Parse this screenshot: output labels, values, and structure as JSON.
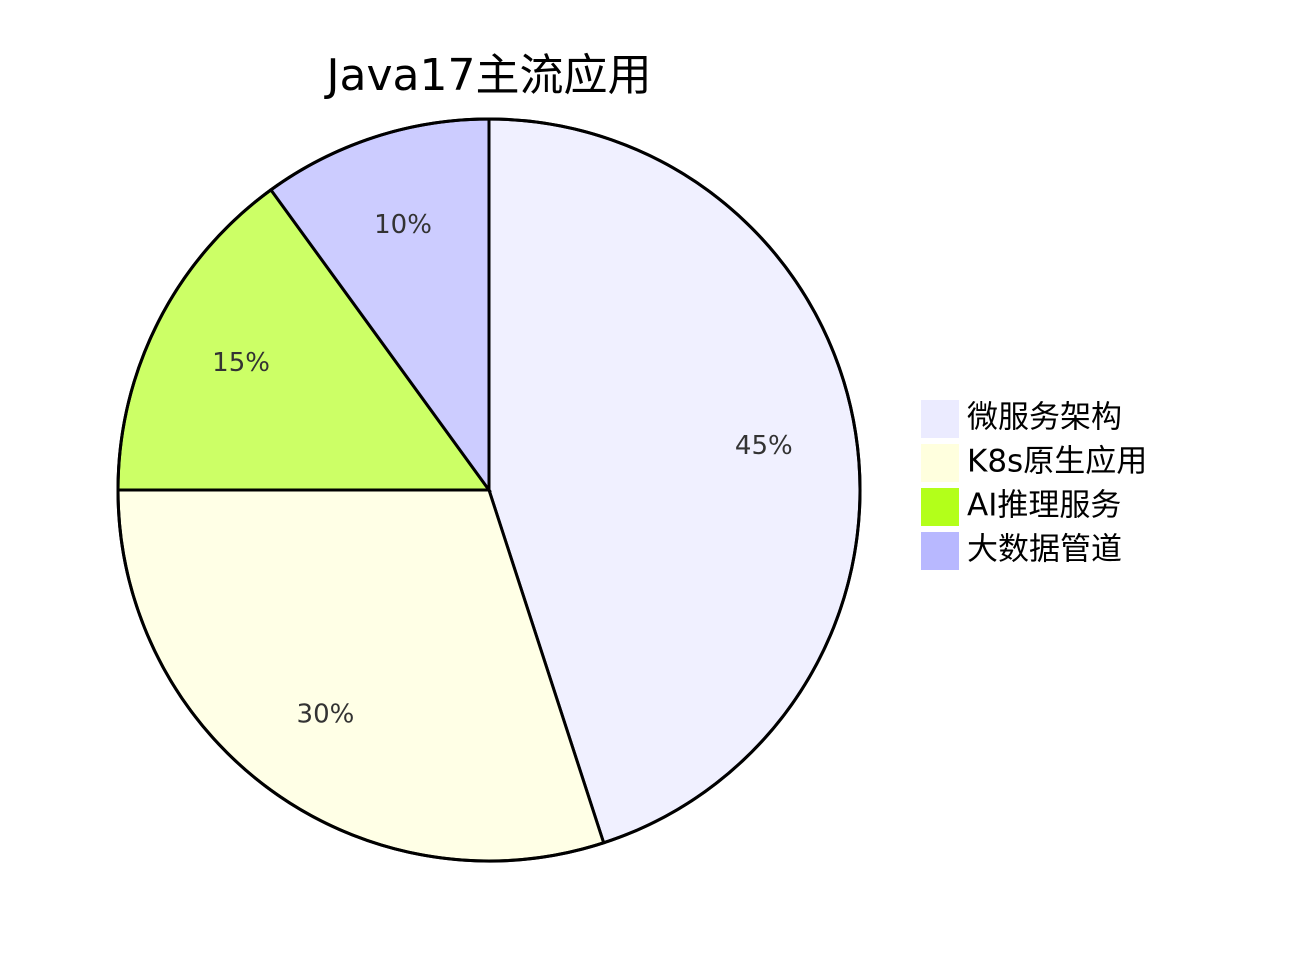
{
  "chart_data": {
    "type": "pie",
    "title": "Java17主流应用",
    "slices": [
      {
        "label": "微服务架构",
        "value": 45,
        "display": "45%",
        "color": "#f0f0ff"
      },
      {
        "label": "K8s原生应用",
        "value": 30,
        "display": "30%",
        "color": "#ffffe6"
      },
      {
        "label": "AI推理服务",
        "value": 15,
        "display": "15%",
        "color": "#ccff66"
      },
      {
        "label": "大数据管道",
        "value": 10,
        "display": "10%",
        "color": "#ccccff"
      }
    ],
    "legend_colors": [
      "#ebebff",
      "#ffffde",
      "#b3ff1a",
      "#b8b8ff"
    ],
    "legend_position": "right",
    "start_angle": "top",
    "direction": "clockwise"
  }
}
